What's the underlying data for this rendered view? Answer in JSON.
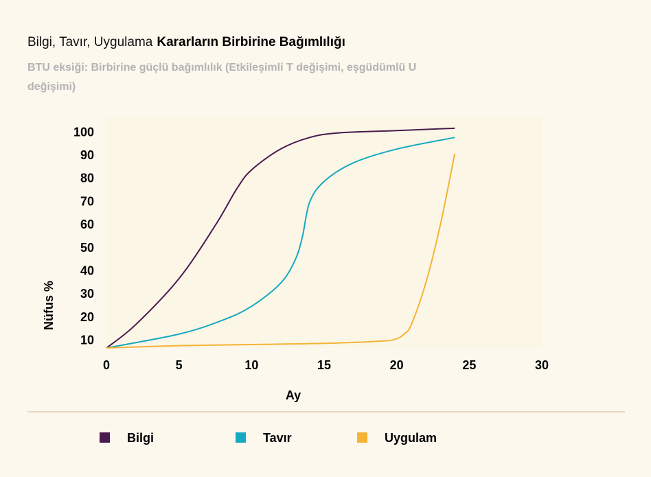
{
  "chart_data": {
    "type": "line",
    "title": "Bilgi, Tavır, Uygulama",
    "title_emphasis": "Kararların Birbirine Bağımlılığı",
    "subtitle": "BTU eksiği: Birbirine güçlü bağımlılık (Etkileşimli T değişimi, eşgüdümlü U",
    "subtitle_line2": "değişimi)",
    "x_label": "Ay",
    "y_label": "Nüfus %",
    "xlim": [
      0,
      30
    ],
    "xticks": [
      0,
      5,
      10,
      15,
      20,
      25,
      30
    ],
    "ylim": [
      7,
      107
    ],
    "yticks": [
      10,
      20,
      30,
      40,
      50,
      60,
      70,
      80,
      90,
      100
    ],
    "legend": "bottom",
    "series": [
      {
        "name": "Bilgi",
        "color": "#4a1a4f",
        "x": [
          0,
          2,
          5,
          7.5,
          9,
          10,
          12,
          14,
          16,
          20,
          24
        ],
        "values": [
          7,
          17,
          37,
          60,
          76,
          84,
          93,
          98,
          100,
          101,
          102
        ]
      },
      {
        "name": "Tavır",
        "color": "#17a9c1",
        "x": [
          0,
          5,
          8,
          10,
          12,
          13,
          13.5,
          14,
          15,
          17,
          20,
          24
        ],
        "values": [
          7,
          13,
          19,
          25,
          35,
          45,
          55,
          70,
          79,
          87,
          93,
          98
        ]
      },
      {
        "name": "Uygulam",
        "color": "#f5b335",
        "x": [
          0,
          5,
          10,
          15,
          19,
          20,
          20.5,
          21,
          22,
          23,
          24
        ],
        "values": [
          7,
          8,
          8.5,
          9,
          10,
          11,
          13,
          17,
          35,
          60,
          91
        ]
      }
    ]
  }
}
